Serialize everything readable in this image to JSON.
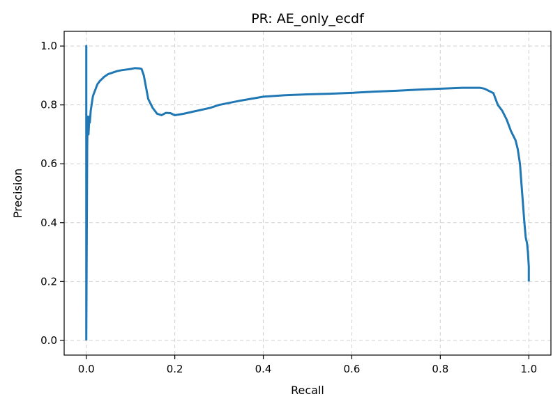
{
  "chart_data": {
    "type": "line",
    "title": "PR: AE_only_ecdf",
    "xlabel": "Recall",
    "ylabel": "Precision",
    "xlim": [
      -0.05,
      1.05
    ],
    "ylim": [
      -0.05,
      1.05
    ],
    "xticks": [
      0.0,
      0.2,
      0.4,
      0.6,
      0.8,
      1.0
    ],
    "xtick_labels": [
      "0.0",
      "0.2",
      "0.4",
      "0.6",
      "0.8",
      "1.0"
    ],
    "yticks": [
      0.0,
      0.2,
      0.4,
      0.6,
      0.8,
      1.0
    ],
    "ytick_labels": [
      "0.0",
      "0.2",
      "0.4",
      "0.6",
      "0.8",
      "1.0"
    ],
    "grid": true,
    "grid_style": "dashed",
    "series": [
      {
        "color": "#1f77b4",
        "x": [
          0.0,
          0.0,
          0.0,
          0.002,
          0.003,
          0.005,
          0.007,
          0.008,
          0.01,
          0.012,
          0.015,
          0.02,
          0.025,
          0.03,
          0.04,
          0.05,
          0.06,
          0.07,
          0.08,
          0.09,
          0.1,
          0.11,
          0.12,
          0.125,
          0.13,
          0.135,
          0.14,
          0.15,
          0.16,
          0.17,
          0.18,
          0.19,
          0.2,
          0.22,
          0.25,
          0.28,
          0.3,
          0.35,
          0.4,
          0.45,
          0.5,
          0.55,
          0.6,
          0.65,
          0.7,
          0.75,
          0.8,
          0.85,
          0.89,
          0.9,
          0.92,
          0.93,
          0.94,
          0.95,
          0.96,
          0.97,
          0.975,
          0.98,
          0.985,
          0.99,
          0.993,
          0.996,
          0.998,
          1.0,
          1.0
        ],
        "y": [
          0.0,
          1.0,
          0.02,
          0.65,
          0.76,
          0.7,
          0.76,
          0.74,
          0.78,
          0.8,
          0.83,
          0.85,
          0.87,
          0.88,
          0.895,
          0.905,
          0.91,
          0.915,
          0.918,
          0.92,
          0.922,
          0.925,
          0.924,
          0.922,
          0.9,
          0.86,
          0.82,
          0.79,
          0.77,
          0.765,
          0.773,
          0.772,
          0.765,
          0.77,
          0.78,
          0.79,
          0.8,
          0.815,
          0.828,
          0.833,
          0.836,
          0.838,
          0.841,
          0.845,
          0.848,
          0.852,
          0.855,
          0.858,
          0.858,
          0.855,
          0.84,
          0.8,
          0.78,
          0.75,
          0.71,
          0.68,
          0.65,
          0.6,
          0.5,
          0.4,
          0.35,
          0.33,
          0.3,
          0.25,
          0.2
        ]
      }
    ]
  }
}
